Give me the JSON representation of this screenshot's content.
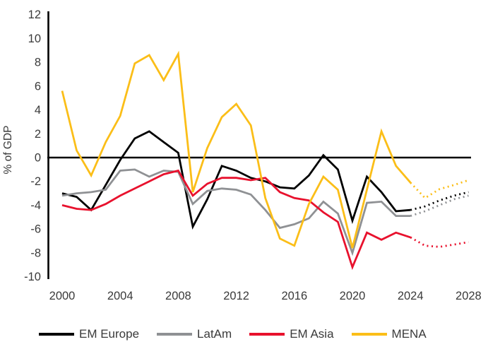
{
  "chart_data": {
    "type": "line",
    "title": "",
    "ylabel": "% of GDP",
    "xlabel": "",
    "ylim": [
      -10,
      12
    ],
    "ytick_step": 2,
    "xticks": [
      2000,
      2004,
      2008,
      2012,
      2016,
      2020,
      2024,
      2028
    ],
    "x": [
      2000,
      2001,
      2002,
      2003,
      2004,
      2005,
      2006,
      2007,
      2008,
      2009,
      2010,
      2011,
      2012,
      2013,
      2014,
      2015,
      2016,
      2017,
      2018,
      2019,
      2020,
      2021,
      2022,
      2023,
      2024,
      2025,
      2026,
      2027,
      2028
    ],
    "forecast_start_year": 2024,
    "grid": false,
    "legend_position": "bottom",
    "zero_line": true,
    "series": [
      {
        "name": "EM Europe",
        "color": "#000000",
        "values": [
          -3.0,
          -3.3,
          -4.4,
          -2.3,
          -0.2,
          1.6,
          2.2,
          1.3,
          0.4,
          -5.8,
          -3.5,
          -0.7,
          -1.1,
          -1.7,
          -2.0,
          -2.5,
          -2.6,
          -1.5,
          0.2,
          -1.0,
          -5.3,
          -1.6,
          -2.9,
          -4.5,
          -4.4,
          -4.1,
          -3.6,
          -3.2,
          -2.9
        ]
      },
      {
        "name": "LatAm",
        "color": "#8F9194",
        "values": [
          -3.2,
          -3.0,
          -2.9,
          -2.7,
          -1.1,
          -1.0,
          -1.6,
          -1.1,
          -1.2,
          -3.9,
          -2.8,
          -2.6,
          -2.7,
          -3.1,
          -4.4,
          -5.9,
          -5.6,
          -5.1,
          -3.7,
          -4.7,
          -8.0,
          -3.8,
          -3.7,
          -4.9,
          -4.9,
          -4.5,
          -4.0,
          -3.5,
          -3.2
        ]
      },
      {
        "name": "EM Asia",
        "color": "#E8112D",
        "values": [
          -4.0,
          -4.3,
          -4.4,
          -3.9,
          -3.2,
          -2.6,
          -2.0,
          -1.4,
          -1.1,
          -3.2,
          -2.2,
          -1.7,
          -1.7,
          -1.9,
          -1.7,
          -2.9,
          -3.4,
          -3.6,
          -4.6,
          -5.4,
          -9.2,
          -6.3,
          -6.9,
          -6.3,
          -6.7,
          -7.4,
          -7.5,
          -7.3,
          -7.1
        ]
      },
      {
        "name": "MENA",
        "color": "#FBBE18",
        "values": [
          5.6,
          0.6,
          -1.5,
          1.3,
          3.5,
          7.9,
          8.6,
          6.5,
          8.7,
          -2.9,
          0.8,
          3.4,
          4.5,
          2.7,
          -3.4,
          -6.8,
          -7.4,
          -3.9,
          -1.6,
          -2.7,
          -7.6,
          -2.7,
          2.2,
          -0.7,
          -2.1,
          -3.4,
          -2.65,
          -2.3,
          -1.9
        ]
      }
    ]
  }
}
